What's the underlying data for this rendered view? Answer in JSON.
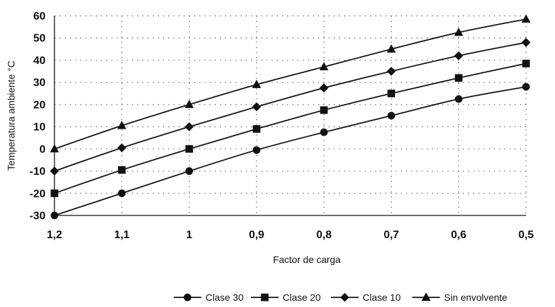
{
  "chart_data": {
    "type": "line",
    "title": "",
    "xlabel": "Factor de carga",
    "ylabel": "Temperatura ambiente °C",
    "categories": [
      "1,2",
      "1,1",
      "1",
      "0,9",
      "0,8",
      "0,7",
      "0,6",
      "0,5"
    ],
    "y_ticks": [
      "60",
      "50",
      "40",
      "30",
      "20",
      "10",
      "0",
      "-10",
      "-20",
      "-30"
    ],
    "ylim": [
      -30,
      60
    ],
    "grid": true,
    "legend_position": "bottom-right",
    "series": [
      {
        "name": "Clase 30",
        "marker": "circle",
        "values": [
          -30,
          -20,
          -10,
          -0.5,
          7.5,
          15,
          22.5,
          28
        ]
      },
      {
        "name": "Clase 20",
        "marker": "square",
        "values": [
          -20,
          -9.5,
          0,
          9,
          17.5,
          25,
          32,
          38.5
        ]
      },
      {
        "name": "Clase 10",
        "marker": "diamond",
        "values": [
          -10,
          0.5,
          10,
          19,
          27.5,
          35,
          42,
          48
        ]
      },
      {
        "name": "Sin envolvente",
        "marker": "triangle",
        "values": [
          0,
          10.5,
          20,
          29,
          37,
          45,
          52.5,
          58.5
        ]
      }
    ],
    "colors": {
      "line": "#111111",
      "grid": "#666666"
    }
  }
}
